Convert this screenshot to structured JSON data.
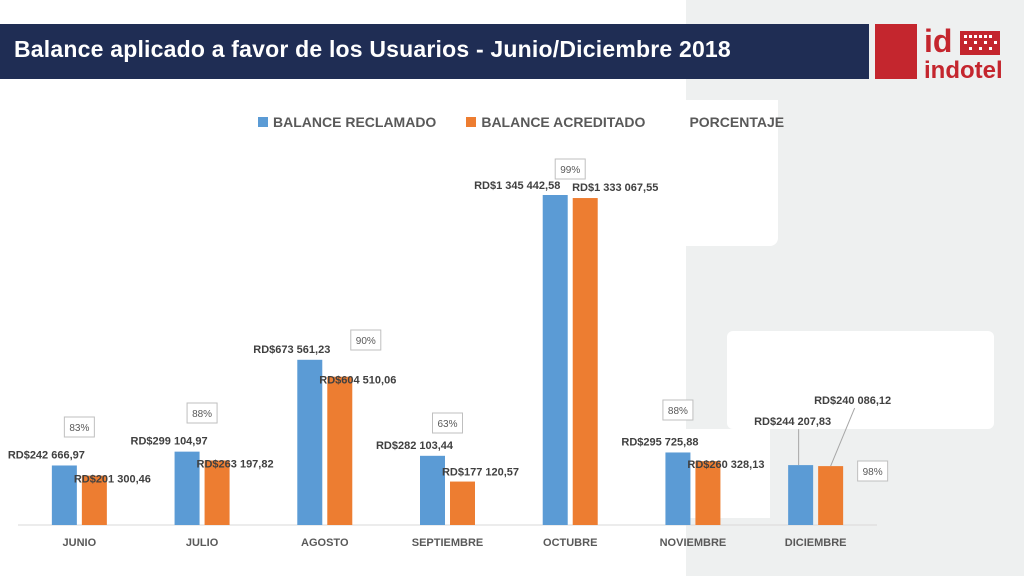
{
  "header": {
    "title": "Balance aplicado a favor de los Usuarios - Junio/Diciembre 2018",
    "logo_text_top": "id",
    "logo_text_bottom": "indotel"
  },
  "colors": {
    "title_bg": "#1f2d54",
    "brand_red": "#c4262e",
    "series_reclamado": "#5b9bd5",
    "series_acreditado": "#ed7d31"
  },
  "legend": [
    {
      "label": "BALANCE RECLAMADO",
      "color": "#5b9bd5"
    },
    {
      "label": "BALANCE ACREDITADO",
      "color": "#ed7d31"
    },
    {
      "label": "PORCENTAJE",
      "color": ""
    }
  ],
  "chart_data": {
    "type": "bar",
    "categories": [
      "JUNIO",
      "JULIO",
      "AGOSTO",
      "SEPTIEMBRE",
      "OCTUBRE",
      "NOVIEMBRE",
      "DICIEMBRE"
    ],
    "series": [
      {
        "name": "BALANCE RECLAMADO",
        "values": [
          242666.97,
          299104.97,
          673561.23,
          282103.44,
          1345442.58,
          295725.88,
          244207.83
        ],
        "labels": [
          "RD$242 666,97",
          "RD$299 104,97",
          "RD$673 561,23",
          "RD$282 103,44",
          "RD$1 345 442,58",
          "RD$295 725,88",
          "RD$244 207,83"
        ]
      },
      {
        "name": "BALANCE ACREDITADO",
        "values": [
          201300.46,
          263197.82,
          604510.06,
          177120.57,
          1333067.55,
          260328.13,
          240086.12
        ],
        "labels": [
          "RD$201 300,46",
          "RD$263 197,82",
          "RD$604 510,06",
          "RD$177 120,57",
          "RD$1 333 067,55",
          "RD$260 328,13",
          "RD$240 086,12"
        ]
      }
    ],
    "percentages": [
      "83%",
      "88%",
      "90%",
      "63%",
      "99%",
      "88%",
      "98%"
    ],
    "ylim": [
      0,
      1400000
    ],
    "grid": false,
    "legend_position": "top"
  }
}
